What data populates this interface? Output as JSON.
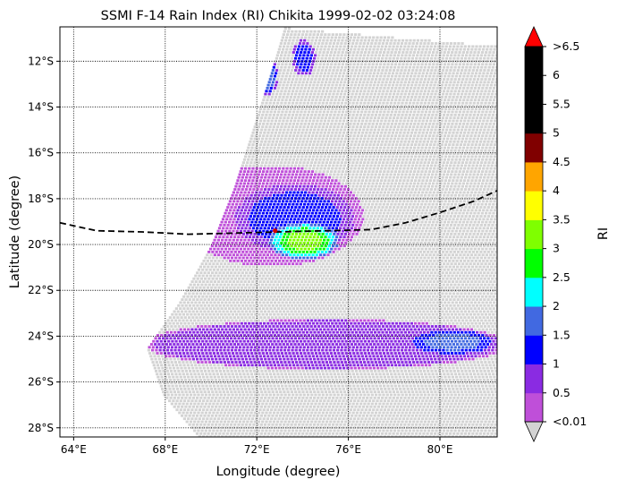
{
  "chart_data": {
    "type": "heatmap",
    "title": "SSMI F-14 Rain Index (RI) Chikita 1999-02-02 03:24:08",
    "xlabel": "Longitude (degree)",
    "ylabel": "Latitude (degree)",
    "xlim": [
      63.4,
      82.5
    ],
    "ylim": [
      -28.4,
      -10.5
    ],
    "x_ticks": [
      {
        "value": 64,
        "label": "64°E"
      },
      {
        "value": 68,
        "label": "68°E"
      },
      {
        "value": 72,
        "label": "72°E"
      },
      {
        "value": 76,
        "label": "76°E"
      },
      {
        "value": 80,
        "label": "80°E"
      }
    ],
    "y_ticks": [
      {
        "value": -12,
        "label": "12°S"
      },
      {
        "value": -14,
        "label": "14°S"
      },
      {
        "value": -16,
        "label": "16°S"
      },
      {
        "value": -18,
        "label": "18°S"
      },
      {
        "value": -20,
        "label": "20°S"
      },
      {
        "value": -22,
        "label": "22°S"
      },
      {
        "value": -24,
        "label": "24°S"
      },
      {
        "value": -26,
        "label": "26°S"
      },
      {
        "value": -28,
        "label": "28°S"
      }
    ],
    "grid": true,
    "no_rain_color": "#d3d3d3",
    "colorbar": {
      "label": "RI",
      "tick_labels": [
        "<0.01",
        "0.5",
        "1",
        "1.5",
        "2",
        "2.5",
        "3",
        "3.5",
        "4",
        "4.5",
        "5",
        "5.5",
        "6",
        ">6.5"
      ],
      "colors": [
        "#bf4fd9",
        "#8a2be2",
        "#0000ff",
        "#4169e1",
        "#00ffff",
        "#00ff00",
        "#7fff00",
        "#ffff00",
        "#ffa500",
        "#800000",
        "#000000",
        "#000000",
        "#000000"
      ],
      "under_color": "#d3d3d3",
      "over_color": "#ff0000"
    },
    "storm_track": [
      [
        63.4,
        -19.05
      ],
      [
        65.0,
        -19.4
      ],
      [
        67.0,
        -19.45
      ],
      [
        69.0,
        -19.55
      ],
      [
        71.0,
        -19.5
      ],
      [
        73.0,
        -19.45
      ],
      [
        75.0,
        -19.4
      ],
      [
        77.0,
        -19.35
      ],
      [
        78.5,
        -19.05
      ],
      [
        80.0,
        -18.6
      ],
      [
        81.5,
        -18.1
      ],
      [
        82.5,
        -17.65
      ]
    ],
    "storm_position": {
      "lon": 72.8,
      "lat": -19.4
    },
    "swath": {
      "left_edge": [
        [
          73.2,
          -10.5
        ],
        [
          72.6,
          -12.5
        ],
        [
          71.8,
          -15.0
        ],
        [
          71.0,
          -17.5
        ],
        [
          70.0,
          -20.0
        ],
        [
          68.6,
          -22.5
        ],
        [
          67.2,
          -24.5
        ],
        [
          67.9,
          -26.5
        ],
        [
          69.5,
          -28.4
        ]
      ],
      "right_edge": [
        [
          82.5,
          -10.5
        ],
        [
          82.5,
          -28.4
        ]
      ],
      "top_edge": [
        [
          73.2,
          -10.5
        ],
        [
          82.5,
          -11.3
        ]
      ]
    },
    "rain_features": [
      {
        "name": "northern band",
        "lon": 72.4,
        "lat": -12.6,
        "extent": [
          0.45,
          0.8
        ],
        "peak_ri": 2.0
      },
      {
        "name": "northern band 2",
        "lon": 74.0,
        "lat": -11.8,
        "extent": [
          0.5,
          0.8
        ],
        "peak_ri": 1.5
      },
      {
        "name": "cyclone core",
        "lon": 74.0,
        "lat": -19.8,
        "extent": [
          1.5,
          0.8
        ],
        "peak_ri": 3.5
      },
      {
        "name": "cyclone inner ring",
        "lon": 73.6,
        "lat": -18.8,
        "extent": [
          2.6,
          1.5
        ],
        "peak_ri": 1.5
      },
      {
        "name": "cyclone outer rain",
        "lon": 72.6,
        "lat": -18.7,
        "extent": [
          4.0,
          2.2
        ],
        "peak_ri": 0.5
      },
      {
        "name": "southern rain band",
        "lon": 75.0,
        "lat": -24.3,
        "extent": [
          8.0,
          1.1
        ],
        "peak_ri": 1.0
      },
      {
        "name": "southern band core",
        "lon": 80.5,
        "lat": -24.2,
        "extent": [
          1.8,
          0.55
        ],
        "peak_ri": 2.0
      }
    ]
  }
}
